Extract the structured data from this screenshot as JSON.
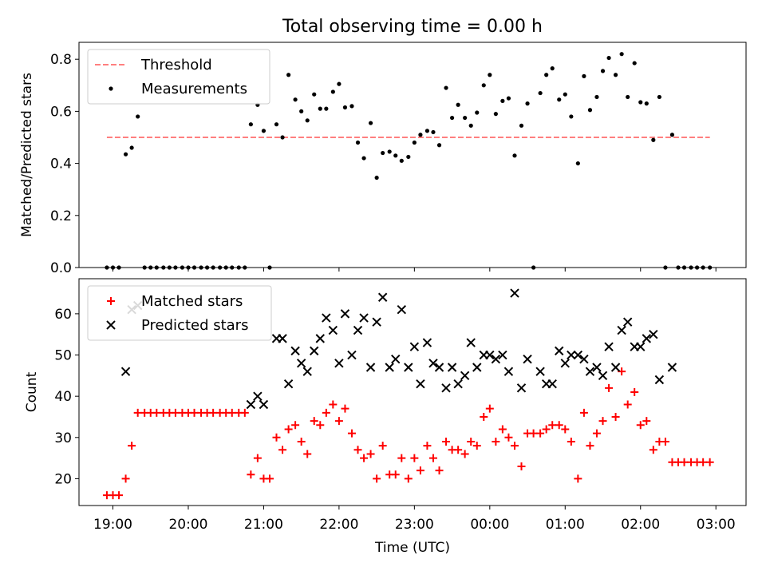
{
  "title": "Total observing time = 0.00 h",
  "colors": {
    "threshold": "#ff7f7f",
    "measurement": "#000000",
    "matched": "#ff0000",
    "predicted": "#000000"
  },
  "chart_data": [
    {
      "type": "scatter",
      "ylabel": "Matched/Predicted stars",
      "ylim": [
        0.0,
        0.865
      ],
      "xlim": [
        18.55,
        27.4
      ],
      "yticks": [
        "0.0",
        "0.2",
        "0.4",
        "0.6",
        "0.8"
      ],
      "legend": {
        "placement": "top-left",
        "entries": [
          "Threshold",
          "Measurements"
        ]
      },
      "threshold": {
        "name": "Threshold",
        "y": 0.5,
        "x_range": [
          18.92,
          26.92
        ]
      },
      "series": [
        {
          "name": "Measurements",
          "points": [
            [
              18.92,
              0
            ],
            [
              19.0,
              0
            ],
            [
              19.08,
              0
            ],
            [
              19.17,
              0.435
            ],
            [
              19.25,
              0.46
            ],
            [
              19.33,
              0.58
            ],
            [
              19.42,
              0
            ],
            [
              19.5,
              0
            ],
            [
              19.58,
              0
            ],
            [
              19.67,
              0
            ],
            [
              19.75,
              0
            ],
            [
              19.83,
              0
            ],
            [
              19.92,
              0
            ],
            [
              20.0,
              0
            ],
            [
              20.08,
              0
            ],
            [
              20.17,
              0
            ],
            [
              20.25,
              0
            ],
            [
              20.33,
              0
            ],
            [
              20.42,
              0
            ],
            [
              20.5,
              0
            ],
            [
              20.58,
              0
            ],
            [
              20.67,
              0
            ],
            [
              20.75,
              0
            ],
            [
              20.83,
              0.55
            ],
            [
              20.92,
              0.625
            ],
            [
              21.0,
              0.525
            ],
            [
              21.08,
              0
            ],
            [
              21.17,
              0.55
            ],
            [
              21.25,
              0.5
            ],
            [
              21.33,
              0.74
            ],
            [
              21.42,
              0.645
            ],
            [
              21.5,
              0.6
            ],
            [
              21.58,
              0.565
            ],
            [
              21.67,
              0.665
            ],
            [
              21.75,
              0.61
            ],
            [
              21.83,
              0.61
            ],
            [
              21.92,
              0.675
            ],
            [
              22.0,
              0.705
            ],
            [
              22.08,
              0.615
            ],
            [
              22.17,
              0.62
            ],
            [
              22.25,
              0.48
            ],
            [
              22.33,
              0.42
            ],
            [
              22.42,
              0.555
            ],
            [
              22.5,
              0.345
            ],
            [
              22.58,
              0.44
            ],
            [
              22.67,
              0.445
            ],
            [
              22.75,
              0.43
            ],
            [
              22.83,
              0.41
            ],
            [
              22.92,
              0.425
            ],
            [
              23.0,
              0.48
            ],
            [
              23.08,
              0.51
            ],
            [
              23.17,
              0.525
            ],
            [
              23.25,
              0.52
            ],
            [
              23.33,
              0.47
            ],
            [
              23.42,
              0.69
            ],
            [
              23.5,
              0.575
            ],
            [
              23.58,
              0.625
            ],
            [
              23.67,
              0.575
            ],
            [
              23.75,
              0.545
            ],
            [
              23.83,
              0.595
            ],
            [
              23.92,
              0.7
            ],
            [
              24.0,
              0.74
            ],
            [
              24.08,
              0.59
            ],
            [
              24.17,
              0.64
            ],
            [
              24.25,
              0.65
            ],
            [
              24.33,
              0.43
            ],
            [
              24.42,
              0.545
            ],
            [
              24.5,
              0.63
            ],
            [
              24.58,
              0
            ],
            [
              24.67,
              0.67
            ],
            [
              24.75,
              0.74
            ],
            [
              24.83,
              0.765
            ],
            [
              24.92,
              0.645
            ],
            [
              25.0,
              0.665
            ],
            [
              25.08,
              0.58
            ],
            [
              25.17,
              0.4
            ],
            [
              25.25,
              0.735
            ],
            [
              25.33,
              0.605
            ],
            [
              25.42,
              0.655
            ],
            [
              25.5,
              0.755
            ],
            [
              25.58,
              0.805
            ],
            [
              25.67,
              0.74
            ],
            [
              25.75,
              0.82
            ],
            [
              25.83,
              0.655
            ],
            [
              25.92,
              0.785
            ],
            [
              26.0,
              0.635
            ],
            [
              26.08,
              0.63
            ],
            [
              26.17,
              0.49
            ],
            [
              26.25,
              0.655
            ],
            [
              26.33,
              0
            ],
            [
              26.42,
              0.51
            ],
            [
              26.5,
              0
            ],
            [
              26.58,
              0
            ],
            [
              26.67,
              0
            ],
            [
              26.75,
              0
            ],
            [
              26.83,
              0
            ],
            [
              26.92,
              0
            ]
          ]
        }
      ]
    },
    {
      "type": "scatter",
      "xlabel": "Time (UTC)",
      "ylabel": "Count",
      "ylim": [
        13.5,
        68.5
      ],
      "xlim": [
        18.55,
        27.4
      ],
      "yticks": [
        "20",
        "30",
        "40",
        "50",
        "60"
      ],
      "xticks": [
        {
          "x": 19,
          "label": "19:00"
        },
        {
          "x": 20,
          "label": "20:00"
        },
        {
          "x": 21,
          "label": "21:00"
        },
        {
          "x": 22,
          "label": "22:00"
        },
        {
          "x": 23,
          "label": "23:00"
        },
        {
          "x": 24,
          "label": "00:00"
        },
        {
          "x": 25,
          "label": "01:00"
        },
        {
          "x": 26,
          "label": "02:00"
        },
        {
          "x": 27,
          "label": "03:00"
        }
      ],
      "legend": {
        "placement": "top-left",
        "entries": [
          "Matched stars",
          "Predicted stars"
        ]
      },
      "series": [
        {
          "name": "Matched stars",
          "marker": "plus",
          "points": [
            [
              18.92,
              16
            ],
            [
              19.0,
              16
            ],
            [
              19.08,
              16
            ],
            [
              19.17,
              20
            ],
            [
              19.25,
              28
            ],
            [
              19.33,
              36
            ],
            [
              19.42,
              36
            ],
            [
              19.5,
              36
            ],
            [
              19.58,
              36
            ],
            [
              19.67,
              36
            ],
            [
              19.75,
              36
            ],
            [
              19.83,
              36
            ],
            [
              19.92,
              36
            ],
            [
              20.0,
              36
            ],
            [
              20.08,
              36
            ],
            [
              20.17,
              36
            ],
            [
              20.25,
              36
            ],
            [
              20.33,
              36
            ],
            [
              20.42,
              36
            ],
            [
              20.5,
              36
            ],
            [
              20.58,
              36
            ],
            [
              20.67,
              36
            ],
            [
              20.75,
              36
            ],
            [
              20.83,
              21
            ],
            [
              20.92,
              25
            ],
            [
              21.0,
              20
            ],
            [
              21.08,
              20
            ],
            [
              21.17,
              30
            ],
            [
              21.25,
              27
            ],
            [
              21.33,
              32
            ],
            [
              21.42,
              33
            ],
            [
              21.5,
              29
            ],
            [
              21.58,
              26
            ],
            [
              21.67,
              34
            ],
            [
              21.75,
              33
            ],
            [
              21.83,
              36
            ],
            [
              21.92,
              38
            ],
            [
              22.0,
              34
            ],
            [
              22.08,
              37
            ],
            [
              22.17,
              31
            ],
            [
              22.25,
              27
            ],
            [
              22.33,
              25
            ],
            [
              22.42,
              26
            ],
            [
              22.5,
              20
            ],
            [
              22.58,
              28
            ],
            [
              22.67,
              21
            ],
            [
              22.75,
              21
            ],
            [
              22.83,
              25
            ],
            [
              22.92,
              20
            ],
            [
              23.0,
              25
            ],
            [
              23.08,
              22
            ],
            [
              23.17,
              28
            ],
            [
              23.25,
              25
            ],
            [
              23.33,
              22
            ],
            [
              23.42,
              29
            ],
            [
              23.5,
              27
            ],
            [
              23.58,
              27
            ],
            [
              23.67,
              26
            ],
            [
              23.75,
              29
            ],
            [
              23.83,
              28
            ],
            [
              23.92,
              35
            ],
            [
              24.0,
              37
            ],
            [
              24.08,
              29
            ],
            [
              24.17,
              32
            ],
            [
              24.25,
              30
            ],
            [
              24.33,
              28
            ],
            [
              24.42,
              23
            ],
            [
              24.5,
              31
            ],
            [
              24.58,
              31
            ],
            [
              24.67,
              31
            ],
            [
              24.75,
              32
            ],
            [
              24.83,
              33
            ],
            [
              24.92,
              33
            ],
            [
              25.0,
              32
            ],
            [
              25.08,
              29
            ],
            [
              25.17,
              20
            ],
            [
              25.25,
              36
            ],
            [
              25.33,
              28
            ],
            [
              25.42,
              31
            ],
            [
              25.5,
              34
            ],
            [
              25.58,
              42
            ],
            [
              25.67,
              35
            ],
            [
              25.75,
              46
            ],
            [
              25.83,
              38
            ],
            [
              25.92,
              41
            ],
            [
              26.0,
              33
            ],
            [
              26.08,
              34
            ],
            [
              26.17,
              27
            ],
            [
              26.25,
              29
            ],
            [
              26.33,
              29
            ],
            [
              26.42,
              24
            ],
            [
              26.5,
              24
            ],
            [
              26.58,
              24
            ],
            [
              26.67,
              24
            ],
            [
              26.75,
              24
            ],
            [
              26.83,
              24
            ],
            [
              26.92,
              24
            ]
          ]
        },
        {
          "name": "Predicted stars",
          "marker": "x",
          "points": [
            [
              19.17,
              46
            ],
            [
              19.25,
              61
            ],
            [
              19.33,
              62
            ],
            [
              20.83,
              38
            ],
            [
              20.92,
              40
            ],
            [
              21.0,
              38
            ],
            [
              21.17,
              54
            ],
            [
              21.25,
              54
            ],
            [
              21.33,
              43
            ],
            [
              21.42,
              51
            ],
            [
              21.5,
              48
            ],
            [
              21.58,
              46
            ],
            [
              21.67,
              51
            ],
            [
              21.75,
              54
            ],
            [
              21.83,
              59
            ],
            [
              21.92,
              56
            ],
            [
              22.0,
              48
            ],
            [
              22.08,
              60
            ],
            [
              22.17,
              50
            ],
            [
              22.25,
              56
            ],
            [
              22.33,
              59
            ],
            [
              22.42,
              47
            ],
            [
              22.5,
              58
            ],
            [
              22.58,
              64
            ],
            [
              22.67,
              47
            ],
            [
              22.75,
              49
            ],
            [
              22.83,
              61
            ],
            [
              22.92,
              47
            ],
            [
              23.0,
              52
            ],
            [
              23.08,
              43
            ],
            [
              23.17,
              53
            ],
            [
              23.25,
              48
            ],
            [
              23.33,
              47
            ],
            [
              23.42,
              42
            ],
            [
              23.5,
              47
            ],
            [
              23.58,
              43
            ],
            [
              23.67,
              45
            ],
            [
              23.75,
              53
            ],
            [
              23.83,
              47
            ],
            [
              23.92,
              50
            ],
            [
              24.0,
              50
            ],
            [
              24.08,
              49
            ],
            [
              24.17,
              50
            ],
            [
              24.25,
              46
            ],
            [
              24.33,
              65
            ],
            [
              24.42,
              42
            ],
            [
              24.5,
              49
            ],
            [
              24.67,
              46
            ],
            [
              24.75,
              43
            ],
            [
              24.83,
              43
            ],
            [
              24.92,
              51
            ],
            [
              25.0,
              48
            ],
            [
              25.08,
              50
            ],
            [
              25.17,
              50
            ],
            [
              25.25,
              49
            ],
            [
              25.33,
              46
            ],
            [
              25.42,
              47
            ],
            [
              25.5,
              45
            ],
            [
              25.58,
              52
            ],
            [
              25.67,
              47
            ],
            [
              25.75,
              56
            ],
            [
              25.83,
              58
            ],
            [
              25.92,
              52
            ],
            [
              26.0,
              52
            ],
            [
              26.08,
              54
            ],
            [
              26.17,
              55
            ],
            [
              26.25,
              44
            ],
            [
              26.42,
              47
            ]
          ]
        }
      ]
    }
  ]
}
